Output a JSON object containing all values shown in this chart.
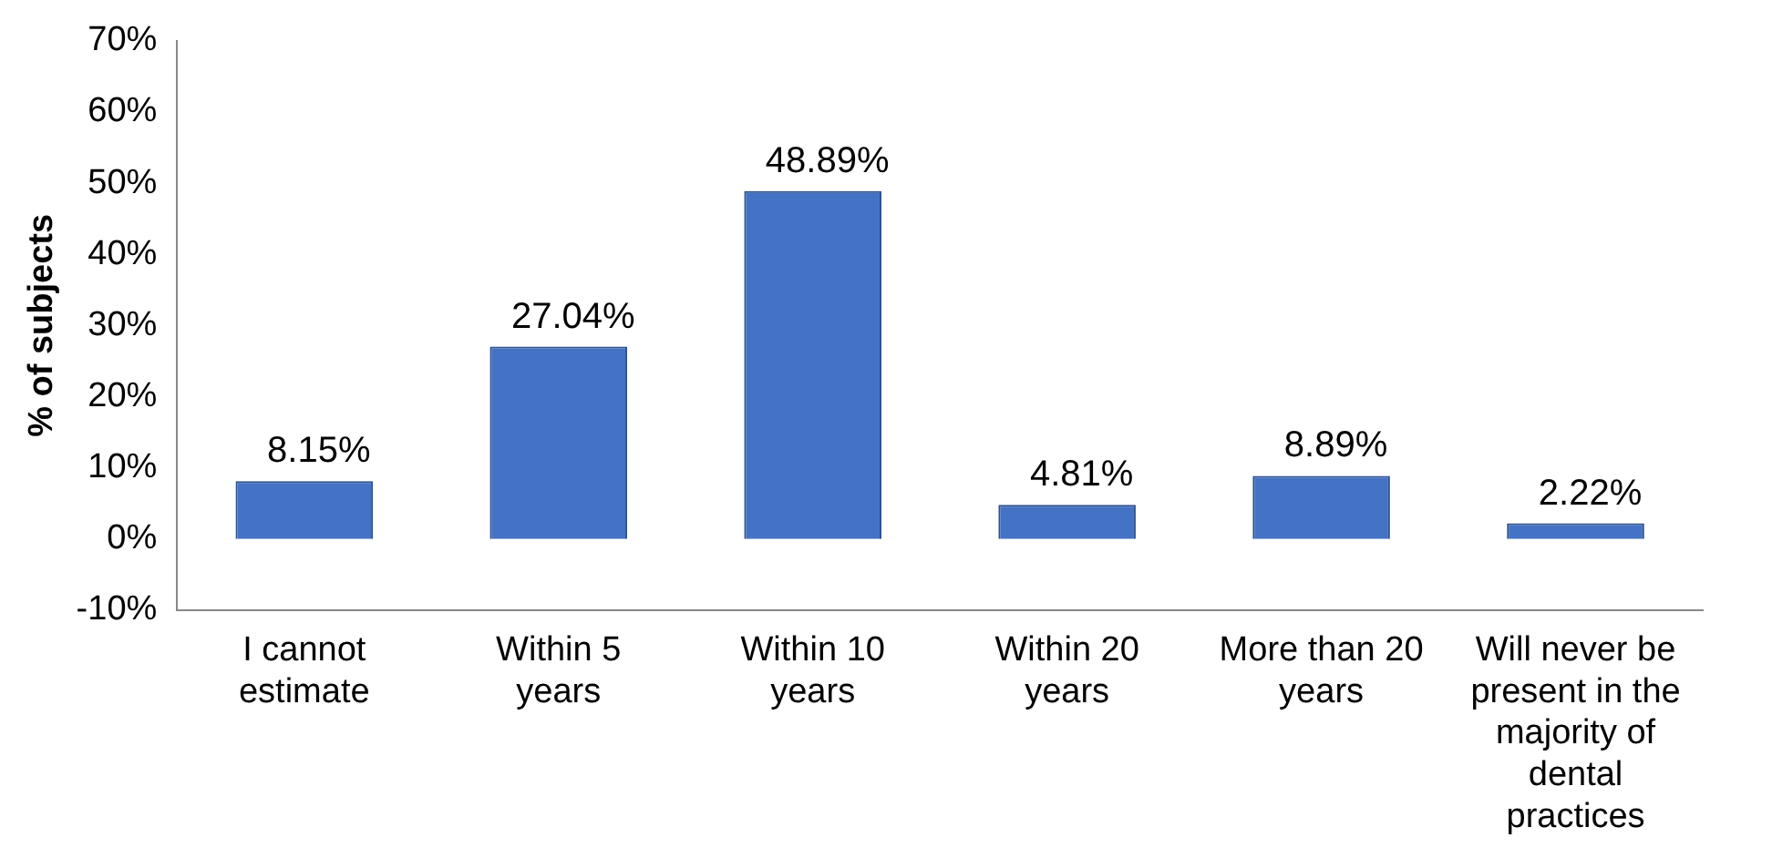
{
  "chart_data": {
    "type": "bar",
    "ylabel": "% of subjects",
    "categories": [
      "I cannot estimate",
      "Within 5 years",
      "Within 10 years",
      "Within 20 years",
      "More than 20 years",
      "Will never be present in the majority of dental practices"
    ],
    "values": [
      8.15,
      27.04,
      48.89,
      4.81,
      8.89,
      2.22
    ],
    "value_labels": [
      "8.15%",
      "27.04%",
      "48.89%",
      "4.81%",
      "8.89%",
      "2.22%"
    ],
    "color": "#4472c4",
    "ylim": [
      -10,
      70
    ],
    "yticks": [
      {
        "value": -10,
        "label": "-10%"
      },
      {
        "value": 0,
        "label": "0%"
      },
      {
        "value": 10,
        "label": "10%"
      },
      {
        "value": 20,
        "label": "20%"
      },
      {
        "value": 30,
        "label": "30%"
      },
      {
        "value": 40,
        "label": "40%"
      },
      {
        "value": 50,
        "label": "50%"
      },
      {
        "value": 60,
        "label": "60%"
      },
      {
        "value": 70,
        "label": "70%"
      }
    ],
    "grid": false,
    "legend": false
  }
}
